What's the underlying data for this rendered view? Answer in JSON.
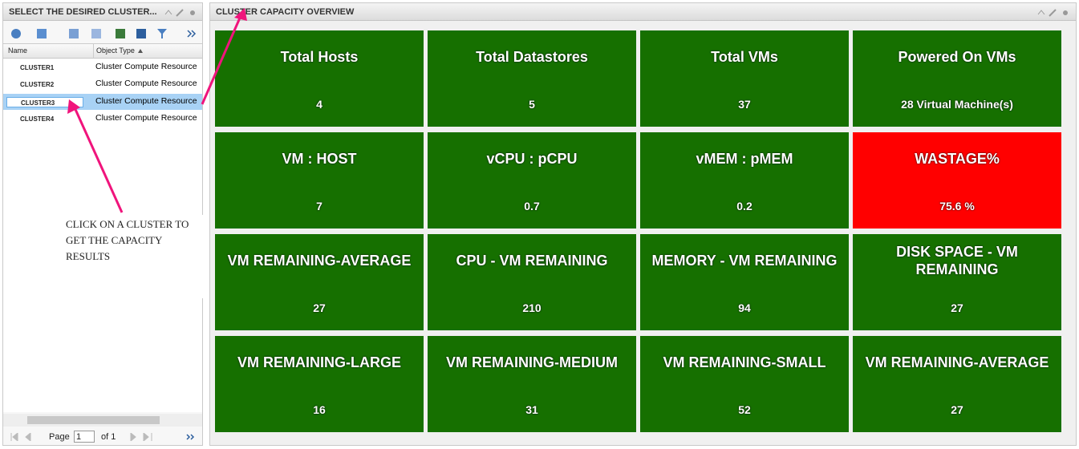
{
  "left_panel": {
    "title": "SELECT THE DESIRED CLUSTER...",
    "columns": [
      "Name",
      "Object Type"
    ],
    "rows": [
      [
        "CLUSTER1",
        "Cluster Compute Resource"
      ],
      [
        "CLUSTER2",
        "Cluster Compute Resource"
      ],
      [
        "CLUSTER3",
        "Cluster Compute Resource"
      ],
      [
        "CLUSTER4",
        "Cluster Compute Resource"
      ]
    ],
    "selected_row": 2,
    "pager": {
      "label": "Page",
      "page": 1,
      "of": "of 1"
    }
  },
  "annotation": "CLICK ON A CLUSTER TO GET THE CAPACITY RESULTS",
  "right_panel": {
    "title": "CLUSTER CAPACITY OVERVIEW",
    "tiles": [
      {
        "title": "Total Hosts",
        "value": 4,
        "color": "#167000"
      },
      {
        "title": "Total Datastores",
        "value": 5,
        "color": "#167000"
      },
      {
        "title": "Total VMs",
        "value": 37,
        "color": "#167000"
      },
      {
        "title": "Powered On VMs",
        "value": "28 Virtual Machine(s)",
        "color": "#167000"
      },
      {
        "title": "VM : HOST",
        "value": 7,
        "color": "#167000"
      },
      {
        "title": "vCPU : pCPU",
        "value": 0.7,
        "color": "#167000"
      },
      {
        "title": "vMEM : pMEM",
        "value": 0.2,
        "color": "#167000"
      },
      {
        "title": "WASTAGE%",
        "value": "75.6 %",
        "color": "#ff0000"
      },
      {
        "title": "VM REMAINING-AVERAGE",
        "value": 27,
        "color": "#167000"
      },
      {
        "title": "CPU - VM REMAINING",
        "value": 210,
        "color": "#167000"
      },
      {
        "title": "MEMORY - VM REMAINING",
        "value": 94,
        "color": "#167000"
      },
      {
        "title": "DISK SPACE - VM REMAINING",
        "value": 27,
        "color": "#167000"
      },
      {
        "title": "VM REMAINING-LARGE",
        "value": 16,
        "color": "#167000"
      },
      {
        "title": "VM REMAINING-MEDIUM",
        "value": 31,
        "color": "#167000"
      },
      {
        "title": "VM REMAINING-SMALL",
        "value": 52,
        "color": "#167000"
      },
      {
        "title": "VM REMAINING-AVERAGE",
        "value": 27,
        "color": "#167000"
      }
    ]
  }
}
